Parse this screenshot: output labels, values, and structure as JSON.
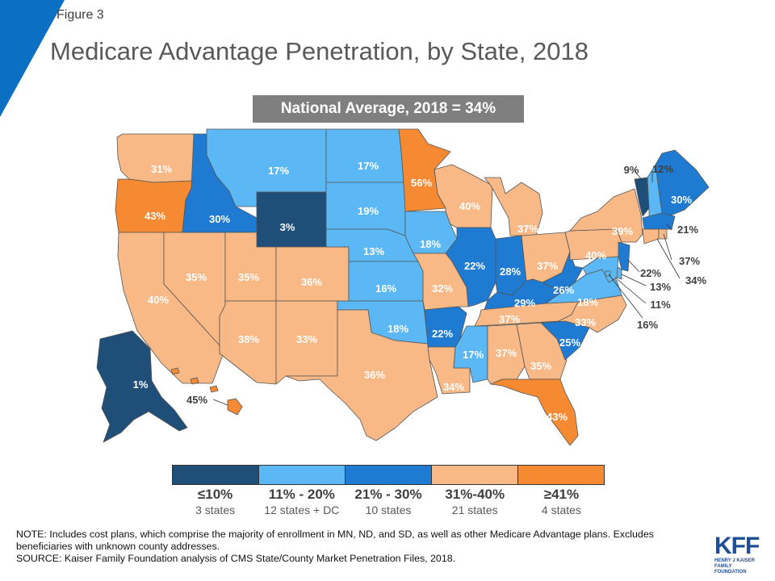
{
  "header": {
    "figure_label": "Figure 3",
    "title": "Medicare Advantage Penetration, by State, 2018",
    "national_average": "National Average, 2018 = 34%"
  },
  "colors": {
    "le10": "#1f4e79",
    "r11_20": "#5bb8f5",
    "r21_30": "#1f7bd1",
    "r31_40": "#f8b986",
    "ge41": "#f58a32",
    "accent": "#0b6fc4",
    "border": "#555555"
  },
  "states": {
    "WA": {
      "value": "31%",
      "cat": "r31_40"
    },
    "OR": {
      "value": "43%",
      "cat": "ge41"
    },
    "CA": {
      "value": "40%",
      "cat": "r31_40"
    },
    "NV": {
      "value": "35%",
      "cat": "r31_40"
    },
    "ID": {
      "value": "30%",
      "cat": "r21_30"
    },
    "MT": {
      "value": "17%",
      "cat": "r11_20"
    },
    "WY": {
      "value": "3%",
      "cat": "le10"
    },
    "UT": {
      "value": "35%",
      "cat": "r31_40"
    },
    "CO": {
      "value": "36%",
      "cat": "r31_40"
    },
    "AZ": {
      "value": "38%",
      "cat": "r31_40"
    },
    "NM": {
      "value": "33%",
      "cat": "r31_40"
    },
    "ND": {
      "value": "17%",
      "cat": "r11_20"
    },
    "SD": {
      "value": "19%",
      "cat": "r11_20"
    },
    "NE": {
      "value": "13%",
      "cat": "r11_20"
    },
    "KS": {
      "value": "16%",
      "cat": "r11_20"
    },
    "OK": {
      "value": "18%",
      "cat": "r11_20"
    },
    "TX": {
      "value": "36%",
      "cat": "r31_40"
    },
    "MN": {
      "value": "56%",
      "cat": "ge41"
    },
    "IA": {
      "value": "18%",
      "cat": "r11_20"
    },
    "MO": {
      "value": "32%",
      "cat": "r31_40"
    },
    "AR": {
      "value": "22%",
      "cat": "r21_30"
    },
    "LA": {
      "value": "34%",
      "cat": "r31_40"
    },
    "WI": {
      "value": "40%",
      "cat": "r31_40"
    },
    "IL": {
      "value": "22%",
      "cat": "r21_30"
    },
    "MI": {
      "value": "37%",
      "cat": "r31_40"
    },
    "IN": {
      "value": "28%",
      "cat": "r21_30"
    },
    "OH": {
      "value": "37%",
      "cat": "r31_40"
    },
    "KY": {
      "value": "29%",
      "cat": "r21_30"
    },
    "TN": {
      "value": "37%",
      "cat": "r31_40"
    },
    "MS": {
      "value": "17%",
      "cat": "r11_20"
    },
    "AL": {
      "value": "37%",
      "cat": "r31_40"
    },
    "GA": {
      "value": "35%",
      "cat": "r31_40"
    },
    "FL": {
      "value": "43%",
      "cat": "ge41"
    },
    "SC": {
      "value": "25%",
      "cat": "r21_30"
    },
    "NC": {
      "value": "33%",
      "cat": "r31_40"
    },
    "VA": {
      "value": "18%",
      "cat": "r11_20"
    },
    "WV": {
      "value": "26%",
      "cat": "r21_30"
    },
    "PA": {
      "value": "40%",
      "cat": "r31_40"
    },
    "NY": {
      "value": "39%",
      "cat": "r31_40"
    },
    "VT": {
      "value": "9%",
      "cat": "le10"
    },
    "NH": {
      "value": "12%",
      "cat": "r11_20"
    },
    "ME": {
      "value": "30%",
      "cat": "r21_30"
    },
    "MA": {
      "value": "21%",
      "cat": "r21_30"
    },
    "RI": {
      "value": "37%",
      "cat": "r31_40"
    },
    "CT": {
      "value": "34%",
      "cat": "r31_40"
    },
    "NJ": {
      "value": "22%",
      "cat": "r21_30"
    },
    "DE": {
      "value": "13%",
      "cat": "r11_20"
    },
    "MD": {
      "value": "11%",
      "cat": "r11_20"
    },
    "DC": {
      "value": "16%",
      "cat": "r11_20"
    },
    "AK": {
      "value": "1%",
      "cat": "le10"
    },
    "HI": {
      "value": "45%",
      "cat": "ge41"
    }
  },
  "legend": [
    {
      "cat": "le10",
      "range": "≤10%",
      "count": "3 states"
    },
    {
      "cat": "r11_20",
      "range": "11% - 20%",
      "count": "12 states + DC"
    },
    {
      "cat": "r21_30",
      "range": "21% - 30%",
      "count": "10 states"
    },
    {
      "cat": "r31_40",
      "range": "31%-40%",
      "count": "21 states"
    },
    {
      "cat": "ge41",
      "range": "≥41%",
      "count": "4 states"
    }
  ],
  "footer": {
    "note": "NOTE: Includes cost plans, which comprise the majority of enrollment in MN, ND, and SD, as well as other Medicare Advantage plans. Excludes beneficiaries with unknown county addresses.",
    "source": "SOURCE:  Kaiser Family Foundation analysis of CMS State/County Market Penetration Files, 2018.",
    "logo_text": "KFF",
    "logo_sub_1": "HENRY J KAISER",
    "logo_sub_2": "FAMILY FOUNDATION"
  }
}
